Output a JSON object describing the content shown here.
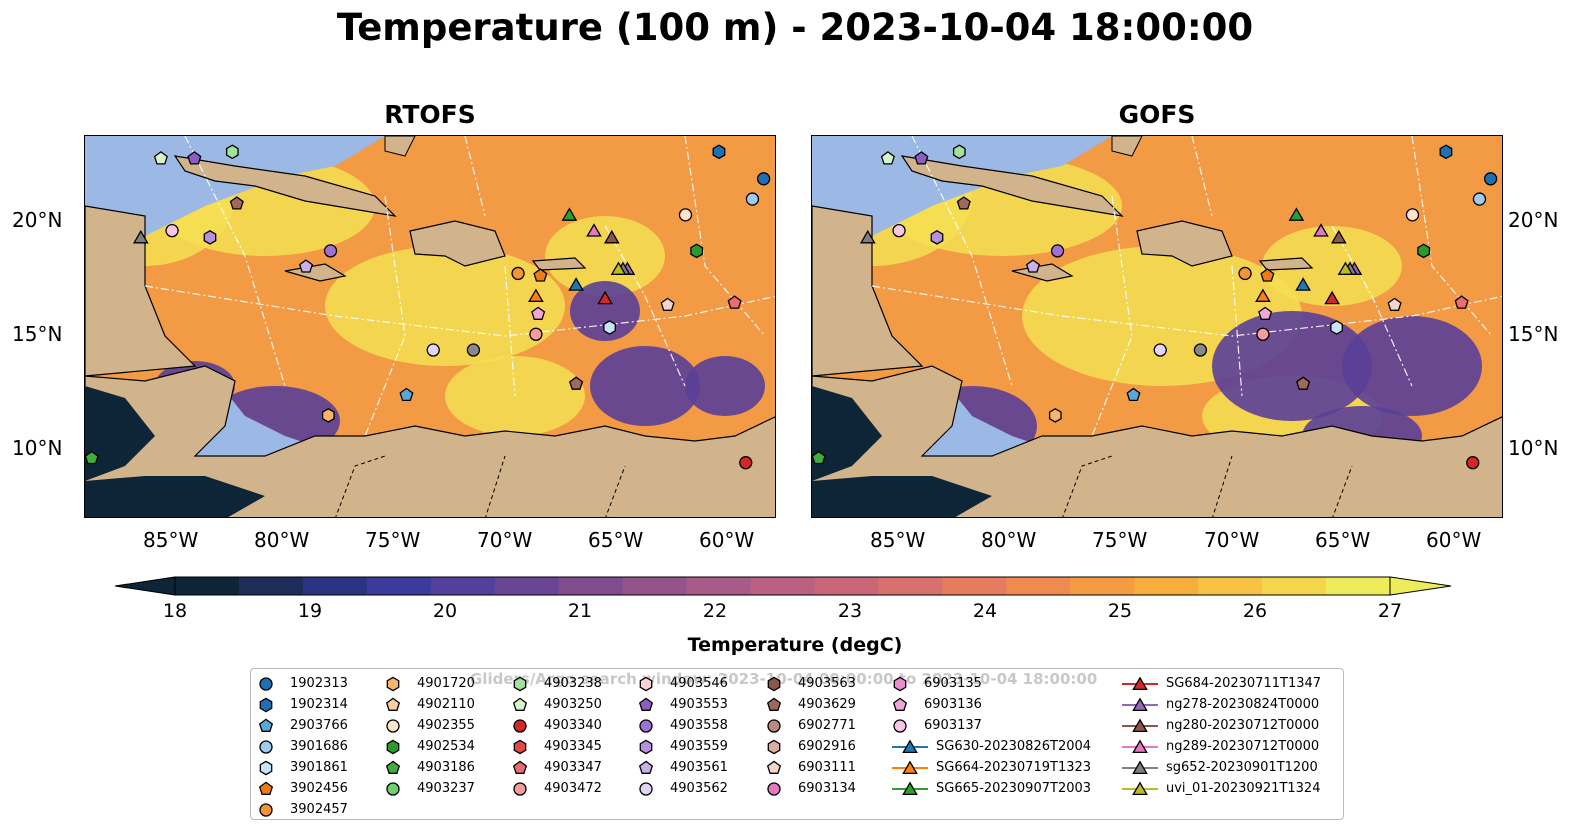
{
  "title": "Temperature (100 m) - 2023-10-04 18:00:00",
  "maps": [
    {
      "id": "rtofs",
      "label": "RTOFS"
    },
    {
      "id": "gofs",
      "label": "GOFS"
    }
  ],
  "axes": {
    "lon_ticks": [
      "85°W",
      "80°W",
      "75°W",
      "70°W",
      "65°W",
      "60°W"
    ],
    "lat_ticks": [
      "20°N",
      "15°N",
      "10°N"
    ],
    "lon_range": [
      -89.0,
      -58.0
    ],
    "lat_range": [
      7.0,
      24.0
    ]
  },
  "colorbar": {
    "label": "Temperature (degC)",
    "ticks": [
      "18",
      "19",
      "20",
      "21",
      "22",
      "23",
      "24",
      "25",
      "26",
      "27"
    ],
    "range": [
      18,
      27
    ],
    "colors": [
      "#0d2537",
      "#1f2d5a",
      "#2a3480",
      "#3c3a9a",
      "#533f9c",
      "#6a4594",
      "#7f4c8e",
      "#92548a",
      "#a85b86",
      "#bb6080",
      "#c96778",
      "#d8706d",
      "#e57c5e",
      "#ef8b4e",
      "#f59c42",
      "#f8ae3d",
      "#f7c244",
      "#f4d64d",
      "#eeec5a"
    ]
  },
  "legend": {
    "watermark": "Gliders/Argo search window: 2023-10-04 00:00:00 to 2023-10-04 18:00:00",
    "items": [
      {
        "label": "1902313",
        "marker": "circle",
        "color": "#1f6fb4"
      },
      {
        "label": "1902314",
        "marker": "hexagon",
        "color": "#1f6fb4"
      },
      {
        "label": "2903766",
        "marker": "pentagon",
        "color": "#5aa8d8"
      },
      {
        "label": "3901686",
        "marker": "circle",
        "color": "#9fcbee"
      },
      {
        "label": "3901861",
        "marker": "hexagon",
        "color": "#c6e4f5"
      },
      {
        "label": "3902456",
        "marker": "pentagon",
        "color": "#f07c14"
      },
      {
        "label": "3902457",
        "marker": "circle",
        "color": "#f39436"
      },
      {
        "label": "4901720",
        "marker": "hexagon",
        "color": "#f8b46a"
      },
      {
        "label": "4902110",
        "marker": "pentagon",
        "color": "#fbcf9e"
      },
      {
        "label": "4902355",
        "marker": "circle",
        "color": "#fde4c8"
      },
      {
        "label": "4902534",
        "marker": "hexagon",
        "color": "#2b9a2b"
      },
      {
        "label": "4903186",
        "marker": "pentagon",
        "color": "#3fae3f"
      },
      {
        "label": "4903237",
        "marker": "circle",
        "color": "#6fcf6f"
      },
      {
        "label": "4903238",
        "marker": "hexagon",
        "color": "#9fe39f"
      },
      {
        "label": "4903250",
        "marker": "pentagon",
        "color": "#d6f5c8"
      },
      {
        "label": "4903340",
        "marker": "circle",
        "color": "#d62728"
      },
      {
        "label": "4903345",
        "marker": "hexagon",
        "color": "#e34848"
      },
      {
        "label": "4903347",
        "marker": "pentagon",
        "color": "#ec6d6d"
      },
      {
        "label": "4903472",
        "marker": "circle",
        "color": "#f59c9c"
      },
      {
        "label": "4903546",
        "marker": "hexagon",
        "color": "#fcd3d3"
      },
      {
        "label": "4903553",
        "marker": "pentagon",
        "color": "#8b5fc2"
      },
      {
        "label": "4903558",
        "marker": "circle",
        "color": "#9e72d0"
      },
      {
        "label": "4903559",
        "marker": "hexagon",
        "color": "#b691dd"
      },
      {
        "label": "4903561",
        "marker": "pentagon",
        "color": "#cbb0e8"
      },
      {
        "label": "4903562",
        "marker": "circle",
        "color": "#e3d3f4"
      },
      {
        "label": "4903563",
        "marker": "hexagon",
        "color": "#8c564b"
      },
      {
        "label": "4903629",
        "marker": "pentagon",
        "color": "#a0695c"
      },
      {
        "label": "6902771",
        "marker": "circle",
        "color": "#bb8a7e"
      },
      {
        "label": "6902916",
        "marker": "hexagon",
        "color": "#d7ae9f"
      },
      {
        "label": "6903111",
        "marker": "pentagon",
        "color": "#f2d6c9"
      },
      {
        "label": "6903134",
        "marker": "circle",
        "color": "#e377c2"
      },
      {
        "label": "6903135",
        "marker": "hexagon",
        "color": "#ea8ecd"
      },
      {
        "label": "6903136",
        "marker": "pentagon",
        "color": "#f1a6d8"
      },
      {
        "label": "6903137",
        "marker": "circle",
        "color": "#f7c6e6"
      },
      {
        "label": "SG630-20230826T2004",
        "marker": "triangle",
        "color": "#1f77b4"
      },
      {
        "label": "SG664-20230719T1323",
        "marker": "triangle",
        "color": "#ff7f0e"
      },
      {
        "label": "SG665-20230907T2003",
        "marker": "triangle",
        "color": "#2ca02c"
      },
      {
        "label": "SG684-20230711T1347",
        "marker": "triangle",
        "color": "#d62728"
      },
      {
        "label": "ng278-20230824T0000",
        "marker": "triangle",
        "color": "#9467bd"
      },
      {
        "label": "ng280-20230712T0000",
        "marker": "triangle",
        "color": "#8c564b"
      },
      {
        "label": "ng289-20230712T0000",
        "marker": "triangle",
        "color": "#e377c2"
      },
      {
        "label": "sg652-20230901T1200",
        "marker": "triangle",
        "color": "#7f7f7f"
      },
      {
        "label": "uvi_01-20230921T1324",
        "marker": "triangle",
        "color": "#bcbd22"
      }
    ]
  },
  "floats": [
    {
      "id": "1902313",
      "lon": -58.6,
      "lat": 22.1
    },
    {
      "id": "1902314",
      "lon": -60.6,
      "lat": 23.3
    },
    {
      "id": "3901686",
      "lon": -59.1,
      "lat": 21.2
    },
    {
      "id": "4902534",
      "lon": -61.6,
      "lat": 18.9
    },
    {
      "id": "4902355",
      "lon": -62.1,
      "lat": 20.5
    },
    {
      "id": "6903137",
      "lon": -85.1,
      "lat": 19.8
    },
    {
      "id": "4903559",
      "lon": -83.4,
      "lat": 19.5
    },
    {
      "id": "4903558",
      "lon": -78.0,
      "lat": 18.9
    },
    {
      "id": "4903561",
      "lon": -79.1,
      "lat": 18.2
    },
    {
      "id": "4903250",
      "lon": -85.6,
      "lat": 23.0
    },
    {
      "id": "4903553",
      "lon": -84.1,
      "lat": 23.0
    },
    {
      "id": "4903238",
      "lon": -82.4,
      "lat": 23.3
    },
    {
      "id": "4903629",
      "lon": -82.2,
      "lat": 21.0
    },
    {
      "id": "3902457",
      "lon": -69.6,
      "lat": 17.9
    },
    {
      "id": "3902456",
      "lon": -68.6,
      "lat": 17.8
    },
    {
      "id": "6903136",
      "lon": -68.7,
      "lat": 16.1
    },
    {
      "id": "4903472",
      "lon": -68.8,
      "lat": 15.2
    },
    {
      "id": "3901861",
      "lon": -65.5,
      "lat": 15.5
    },
    {
      "id": "4903346",
      "lon": -71.6,
      "lat": 14.5
    },
    {
      "id": "4903562",
      "lon": -73.4,
      "lat": 14.5
    },
    {
      "id": "6903111",
      "lon": -62.9,
      "lat": 16.5
    },
    {
      "id": "4903347",
      "lon": -59.9,
      "lat": 16.6
    },
    {
      "id": "2903766",
      "lon": -74.6,
      "lat": 12.5
    },
    {
      "id": "4901720",
      "lon": -78.1,
      "lat": 11.6
    },
    {
      "id": "4903629b",
      "lon": -67.0,
      "lat": 13.0
    },
    {
      "id": "4903186",
      "lon": -88.7,
      "lat": 9.7
    },
    {
      "id": "4903340",
      "lon": -59.4,
      "lat": 9.5
    }
  ],
  "gliders": [
    {
      "id": "SG630",
      "lon": -67.0,
      "lat": 17.4
    },
    {
      "id": "SG664",
      "lon": -68.8,
      "lat": 16.9
    },
    {
      "id": "SG665",
      "lon": -67.3,
      "lat": 20.5
    },
    {
      "id": "SG684",
      "lon": -65.7,
      "lat": 16.8
    },
    {
      "id": "ng278",
      "lon": -64.7,
      "lat": 18.1
    },
    {
      "id": "ng280",
      "lon": -65.4,
      "lat": 19.5
    },
    {
      "id": "ng289",
      "lon": -66.2,
      "lat": 19.8
    },
    {
      "id": "sg652",
      "lon": -64.9,
      "lat": 18.1
    },
    {
      "id": "uvi_01",
      "lon": -65.1,
      "lat": 18.1
    },
    {
      "id": "extra",
      "lon": -86.5,
      "lat": 19.5
    }
  ]
}
